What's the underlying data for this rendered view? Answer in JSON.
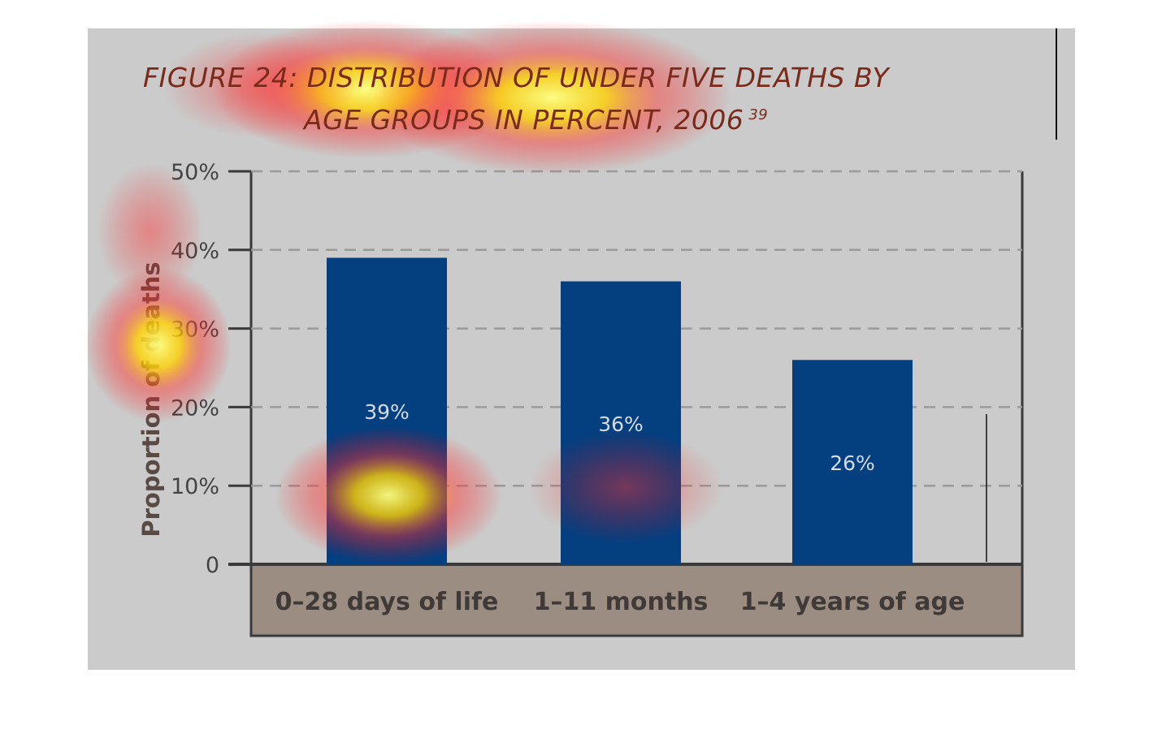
{
  "figure": {
    "title_line_1": "FIGURE 24: DISTRIBUTION OF UNDER FIVE DEATHS BY",
    "title_line_2": "AGE GROUPS IN PERCENT, 2006",
    "title_ref": "39"
  },
  "chart_data": {
    "type": "bar",
    "title": "FIGURE 24: DISTRIBUTION OF UNDER FIVE DEATHS BY AGE GROUPS IN PERCENT, 2006",
    "xlabel": "",
    "ylabel": "Proportion of deaths",
    "categories": [
      "0–28 days of life",
      "1–11 months",
      "1–4 years of age"
    ],
    "values": [
      39,
      36,
      26
    ],
    "data_labels": [
      "39%",
      "36%",
      "26%"
    ],
    "ylim": [
      0,
      50
    ],
    "yticks": [
      0,
      10,
      20,
      30,
      40,
      50
    ],
    "ytick_labels": [
      "0",
      "10%",
      "20%",
      "30%",
      "40%",
      "50%"
    ],
    "grid": true,
    "legend": "none"
  },
  "colors": {
    "background": "#cbcbcb",
    "bar": "#043f80",
    "category_band": "#9c8d82",
    "title": "#7a2a1a",
    "axis": "#3a3a3a"
  }
}
